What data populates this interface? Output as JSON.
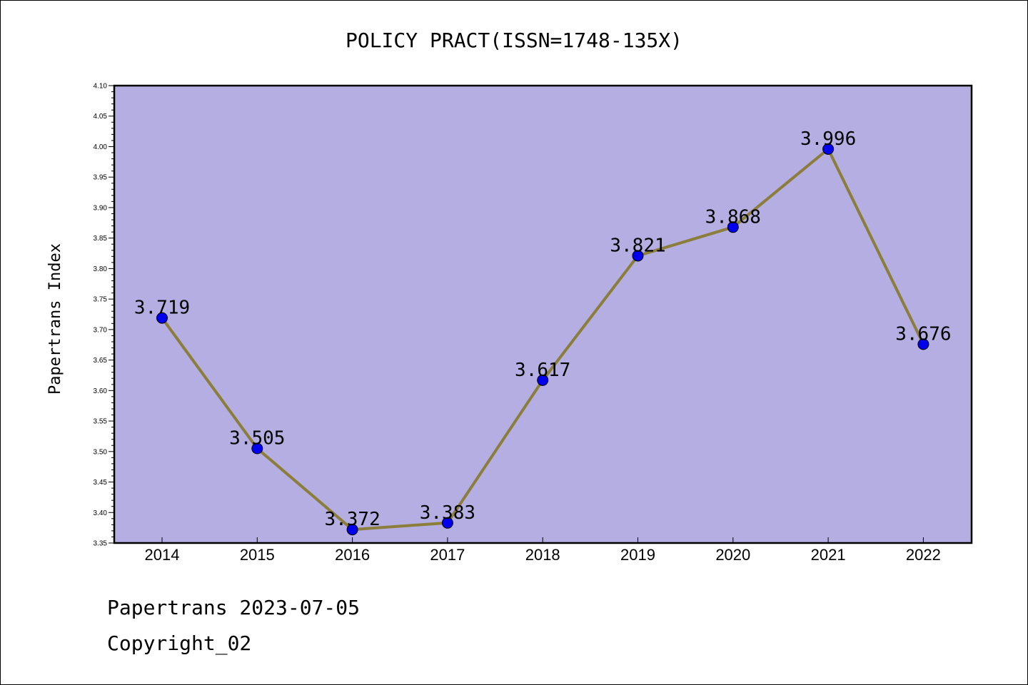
{
  "footer": {
    "line1": "Papertrans 2023-07-05",
    "line2": "Copyright_02"
  },
  "chart_data": {
    "type": "line",
    "title": "POLICY PRACT(ISSN=1748-135X)",
    "xlabel": "",
    "ylabel": "Papertrans Index",
    "categories": [
      "2014",
      "2015",
      "2016",
      "2017",
      "2018",
      "2019",
      "2020",
      "2021",
      "2022"
    ],
    "series": [
      {
        "values": [
          3.719,
          3.505,
          3.372,
          3.383,
          3.617,
          3.821,
          3.868,
          3.996,
          3.676
        ],
        "data_labels": [
          "3.719",
          "3.505",
          "3.372",
          "3.383",
          "3.617",
          "3.821",
          "3.868",
          "3.996",
          "3.676"
        ]
      }
    ],
    "ylim": [
      3.35,
      4.1
    ],
    "yticks": [
      "3.35",
      "3.40",
      "3.45",
      "3.50",
      "3.55",
      "3.60",
      "3.65",
      "3.70",
      "3.75",
      "3.80",
      "3.85",
      "3.90",
      "3.95",
      "4.00",
      "4.05",
      "4.10"
    ],
    "grid": false,
    "legend": "none",
    "colors": {
      "plot_background": "#b4aee2",
      "line": "#8b7d3a",
      "marker": "#0000ee"
    }
  }
}
